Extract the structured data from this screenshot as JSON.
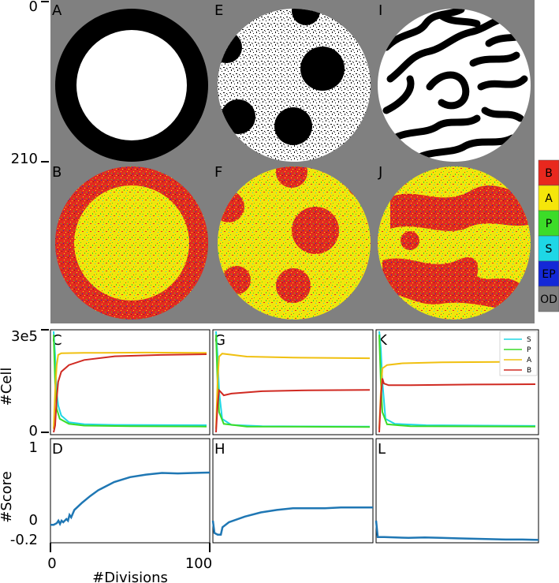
{
  "image_axis": {
    "top_label": "0",
    "mid_label": "210"
  },
  "panel_labels": {
    "A": "A",
    "E": "E",
    "I": "I",
    "B": "B",
    "F": "F",
    "J": "J",
    "C": "C",
    "G": "G",
    "K": "K",
    "D": "D",
    "H": "H",
    "L": "L"
  },
  "colorbar": {
    "labels": [
      "B",
      "A",
      "P",
      "S",
      "EP",
      "OD"
    ],
    "colors": [
      "#e8281e",
      "#f5e60a",
      "#3cdc28",
      "#1ed7e6",
      "#1428d7",
      "#808080"
    ]
  },
  "background_gray": "#808080",
  "chart_data": [
    {
      "type": "line",
      "panels": [
        "C",
        "G",
        "K"
      ],
      "ylabel": "#Cell",
      "yticks": [
        "3e5",
        "0"
      ],
      "ylim": [
        0,
        300000
      ],
      "legend": {
        "placement": "top-right",
        "entries": [
          "S",
          "P",
          "A",
          "B"
        ]
      },
      "series_colors": {
        "S": "#1ed7e6",
        "P": "#3cdc28",
        "A": "#f0c010",
        "B": "#d02a22"
      },
      "C": {
        "S": [
          [
            0,
            300000
          ],
          [
            1,
            230000
          ],
          [
            2,
            120000
          ],
          [
            3,
            80000
          ],
          [
            5,
            50000
          ],
          [
            10,
            30000
          ],
          [
            20,
            24000
          ],
          [
            40,
            22000
          ],
          [
            100,
            21000
          ]
        ],
        "P": [
          [
            0,
            290000
          ],
          [
            1,
            150000
          ],
          [
            2,
            70000
          ],
          [
            4,
            40000
          ],
          [
            10,
            25000
          ],
          [
            20,
            20000
          ],
          [
            50,
            18000
          ],
          [
            100,
            17000
          ]
        ],
        "A": [
          [
            0,
            10000
          ],
          [
            1,
            120000
          ],
          [
            2,
            200000
          ],
          [
            3,
            230000
          ],
          [
            5,
            235000
          ],
          [
            20,
            236000
          ],
          [
            60,
            237000
          ],
          [
            100,
            236000
          ]
        ],
        "B": [
          [
            0,
            0
          ],
          [
            1,
            20000
          ],
          [
            2,
            100000
          ],
          [
            3,
            150000
          ],
          [
            5,
            180000
          ],
          [
            10,
            200000
          ],
          [
            20,
            215000
          ],
          [
            40,
            226000
          ],
          [
            70,
            230000
          ],
          [
            100,
            232000
          ]
        ]
      },
      "G": {
        "S": [
          [
            0,
            300000
          ],
          [
            1,
            230000
          ],
          [
            2,
            120000
          ],
          [
            4,
            40000
          ],
          [
            10,
            22000
          ],
          [
            30,
            18000
          ],
          [
            100,
            17000
          ]
        ],
        "P": [
          [
            0,
            290000
          ],
          [
            1,
            150000
          ],
          [
            2,
            60000
          ],
          [
            5,
            25000
          ],
          [
            20,
            17000
          ],
          [
            100,
            16000
          ]
        ],
        "A": [
          [
            0,
            10000
          ],
          [
            1,
            150000
          ],
          [
            2,
            225000
          ],
          [
            4,
            234000
          ],
          [
            20,
            225000
          ],
          [
            50,
            222000
          ],
          [
            100,
            220000
          ]
        ],
        "B": [
          [
            0,
            0
          ],
          [
            1,
            80000
          ],
          [
            2,
            125000
          ],
          [
            3,
            120000
          ],
          [
            5,
            110000
          ],
          [
            10,
            115000
          ],
          [
            30,
            122000
          ],
          [
            60,
            125000
          ],
          [
            100,
            126000
          ]
        ]
      },
      "K": {
        "S": [
          [
            0,
            300000
          ],
          [
            1,
            250000
          ],
          [
            2,
            150000
          ],
          [
            4,
            40000
          ],
          [
            10,
            25000
          ],
          [
            30,
            21000
          ],
          [
            100,
            19000
          ]
        ],
        "P": [
          [
            0,
            290000
          ],
          [
            1,
            150000
          ],
          [
            2,
            60000
          ],
          [
            5,
            24000
          ],
          [
            20,
            18000
          ],
          [
            100,
            17000
          ]
        ],
        "A": [
          [
            0,
            10000
          ],
          [
            1,
            120000
          ],
          [
            2,
            190000
          ],
          [
            5,
            200000
          ],
          [
            15,
            205000
          ],
          [
            40,
            208000
          ],
          [
            100,
            210000
          ]
        ],
        "B": [
          [
            0,
            0
          ],
          [
            1,
            100000
          ],
          [
            2,
            160000
          ],
          [
            3,
            145000
          ],
          [
            6,
            140000
          ],
          [
            20,
            140000
          ],
          [
            60,
            142000
          ],
          [
            100,
            143000
          ]
        ]
      }
    },
    {
      "type": "line",
      "panels": [
        "D",
        "H",
        "L"
      ],
      "ylabel": "#Score",
      "xlabel": "#Divisions",
      "yticks": [
        "1",
        "0",
        "-0.2"
      ],
      "ylim": [
        -0.2,
        1.0
      ],
      "xlim": [
        0,
        100
      ],
      "xticks": [
        "0",
        "100"
      ],
      "series_color": "#1f77b4",
      "D": [
        [
          0,
          0.0
        ],
        [
          2,
          0.0
        ],
        [
          4,
          0.02
        ],
        [
          5,
          0.05
        ],
        [
          6,
          0.01
        ],
        [
          7,
          0.05
        ],
        [
          8,
          0.03
        ],
        [
          10,
          0.07
        ],
        [
          11,
          0.05
        ],
        [
          12,
          0.12
        ],
        [
          13,
          0.09
        ],
        [
          15,
          0.18
        ],
        [
          20,
          0.27
        ],
        [
          25,
          0.35
        ],
        [
          30,
          0.42
        ],
        [
          40,
          0.52
        ],
        [
          50,
          0.58
        ],
        [
          60,
          0.61
        ],
        [
          70,
          0.63
        ],
        [
          80,
          0.625
        ],
        [
          90,
          0.63
        ],
        [
          100,
          0.635
        ]
      ],
      "H": [
        [
          0,
          0.05
        ],
        [
          1,
          -0.1
        ],
        [
          3,
          -0.12
        ],
        [
          5,
          -0.12
        ],
        [
          6,
          -0.03
        ],
        [
          10,
          0.03
        ],
        [
          20,
          0.1
        ],
        [
          30,
          0.15
        ],
        [
          40,
          0.18
        ],
        [
          50,
          0.2
        ],
        [
          60,
          0.2
        ],
        [
          70,
          0.2
        ],
        [
          80,
          0.21
        ],
        [
          90,
          0.21
        ],
        [
          100,
          0.21
        ]
      ],
      "L": [
        [
          0,
          0.05
        ],
        [
          1,
          -0.15
        ],
        [
          5,
          -0.15
        ],
        [
          20,
          -0.16
        ],
        [
          30,
          -0.155
        ],
        [
          40,
          -0.16
        ],
        [
          50,
          -0.165
        ],
        [
          60,
          -0.17
        ],
        [
          70,
          -0.175
        ],
        [
          80,
          -0.18
        ],
        [
          90,
          -0.18
        ],
        [
          100,
          -0.185
        ]
      ]
    }
  ]
}
